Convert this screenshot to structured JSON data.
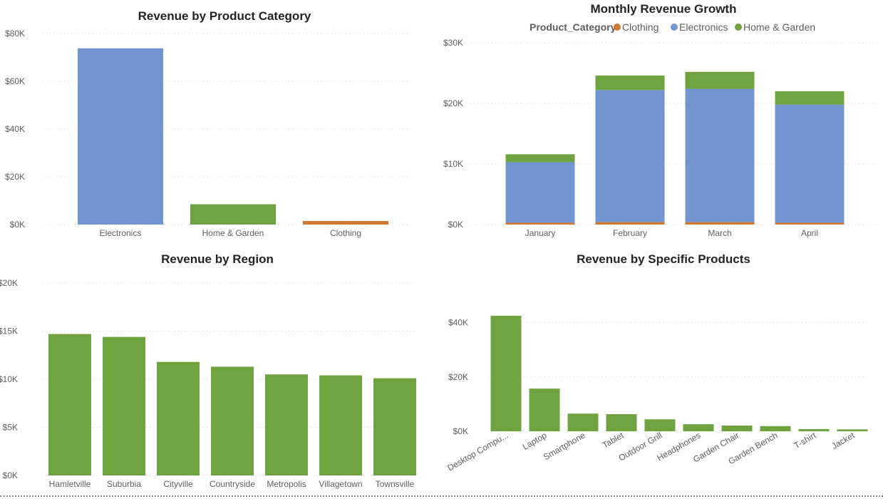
{
  "colors": {
    "Electronics": "#7294d0",
    "Home & Garden": "#6fa33f",
    "Clothing": "#d07830",
    "default_bar": "#6fa33f"
  },
  "chart_data": [
    {
      "id": "category",
      "type": "bar",
      "title": "Revenue by Product Category",
      "categories": [
        "Electronics",
        "Home & Garden",
        "Clothing"
      ],
      "values": [
        73800,
        8500,
        1500
      ],
      "bar_colors": [
        "#7294d0",
        "#6fa33f",
        "#d07830"
      ],
      "ylim": [
        0,
        80000
      ],
      "yticks": [
        0,
        20000,
        40000,
        60000,
        80000
      ],
      "ytick_labels": [
        "$0K",
        "$20K",
        "$40K",
        "$60K",
        "$80K"
      ],
      "grid": true
    },
    {
      "id": "monthly",
      "type": "bar",
      "stacked": true,
      "title": "Monthly Revenue Growth",
      "categories": [
        "January",
        "February",
        "March",
        "April"
      ],
      "legend_title": "Product_Category",
      "legend_position": "top",
      "series": [
        {
          "name": "Clothing",
          "values": [
            300,
            400,
            400,
            300
          ]
        },
        {
          "name": "Electronics",
          "values": [
            10000,
            21800,
            22000,
            19500
          ]
        },
        {
          "name": "Home & Garden",
          "values": [
            1300,
            2400,
            2800,
            2200
          ]
        }
      ],
      "ylim": [
        0,
        30000
      ],
      "yticks": [
        0,
        10000,
        20000,
        30000
      ],
      "ytick_labels": [
        "$0K",
        "$10K",
        "$20K",
        "$30K"
      ],
      "grid": true
    },
    {
      "id": "region",
      "type": "bar",
      "title": "Revenue by Region",
      "categories": [
        "Hamletville",
        "Suburbia",
        "Cityville",
        "Countryside",
        "Metropolis",
        "Villagetown",
        "Townsville"
      ],
      "values": [
        14700,
        14400,
        11800,
        11300,
        10500,
        10400,
        10100
      ],
      "ylim": [
        0,
        20000
      ],
      "yticks": [
        0,
        5000,
        10000,
        15000,
        20000
      ],
      "ytick_labels": [
        "$0K",
        "$5K",
        "$10K",
        "$15K",
        "$20K"
      ],
      "grid": true
    },
    {
      "id": "products",
      "type": "bar",
      "title": "Revenue by Specific Products",
      "categories": [
        "Desktop Compu...",
        "Laptop",
        "Smartphone",
        "Tablet",
        "Outdoor Grill",
        "Headphones",
        "Garden Chair",
        "Garden Bench",
        "T-shirt",
        "Jacket"
      ],
      "values": [
        42500,
        15700,
        6500,
        6300,
        4400,
        2600,
        2100,
        1900,
        800,
        700
      ],
      "ylim": [
        0,
        48000
      ],
      "yticks": [
        0,
        20000,
        40000
      ],
      "ytick_labels": [
        "$0K",
        "$20K",
        "$40K"
      ],
      "grid": true
    }
  ]
}
